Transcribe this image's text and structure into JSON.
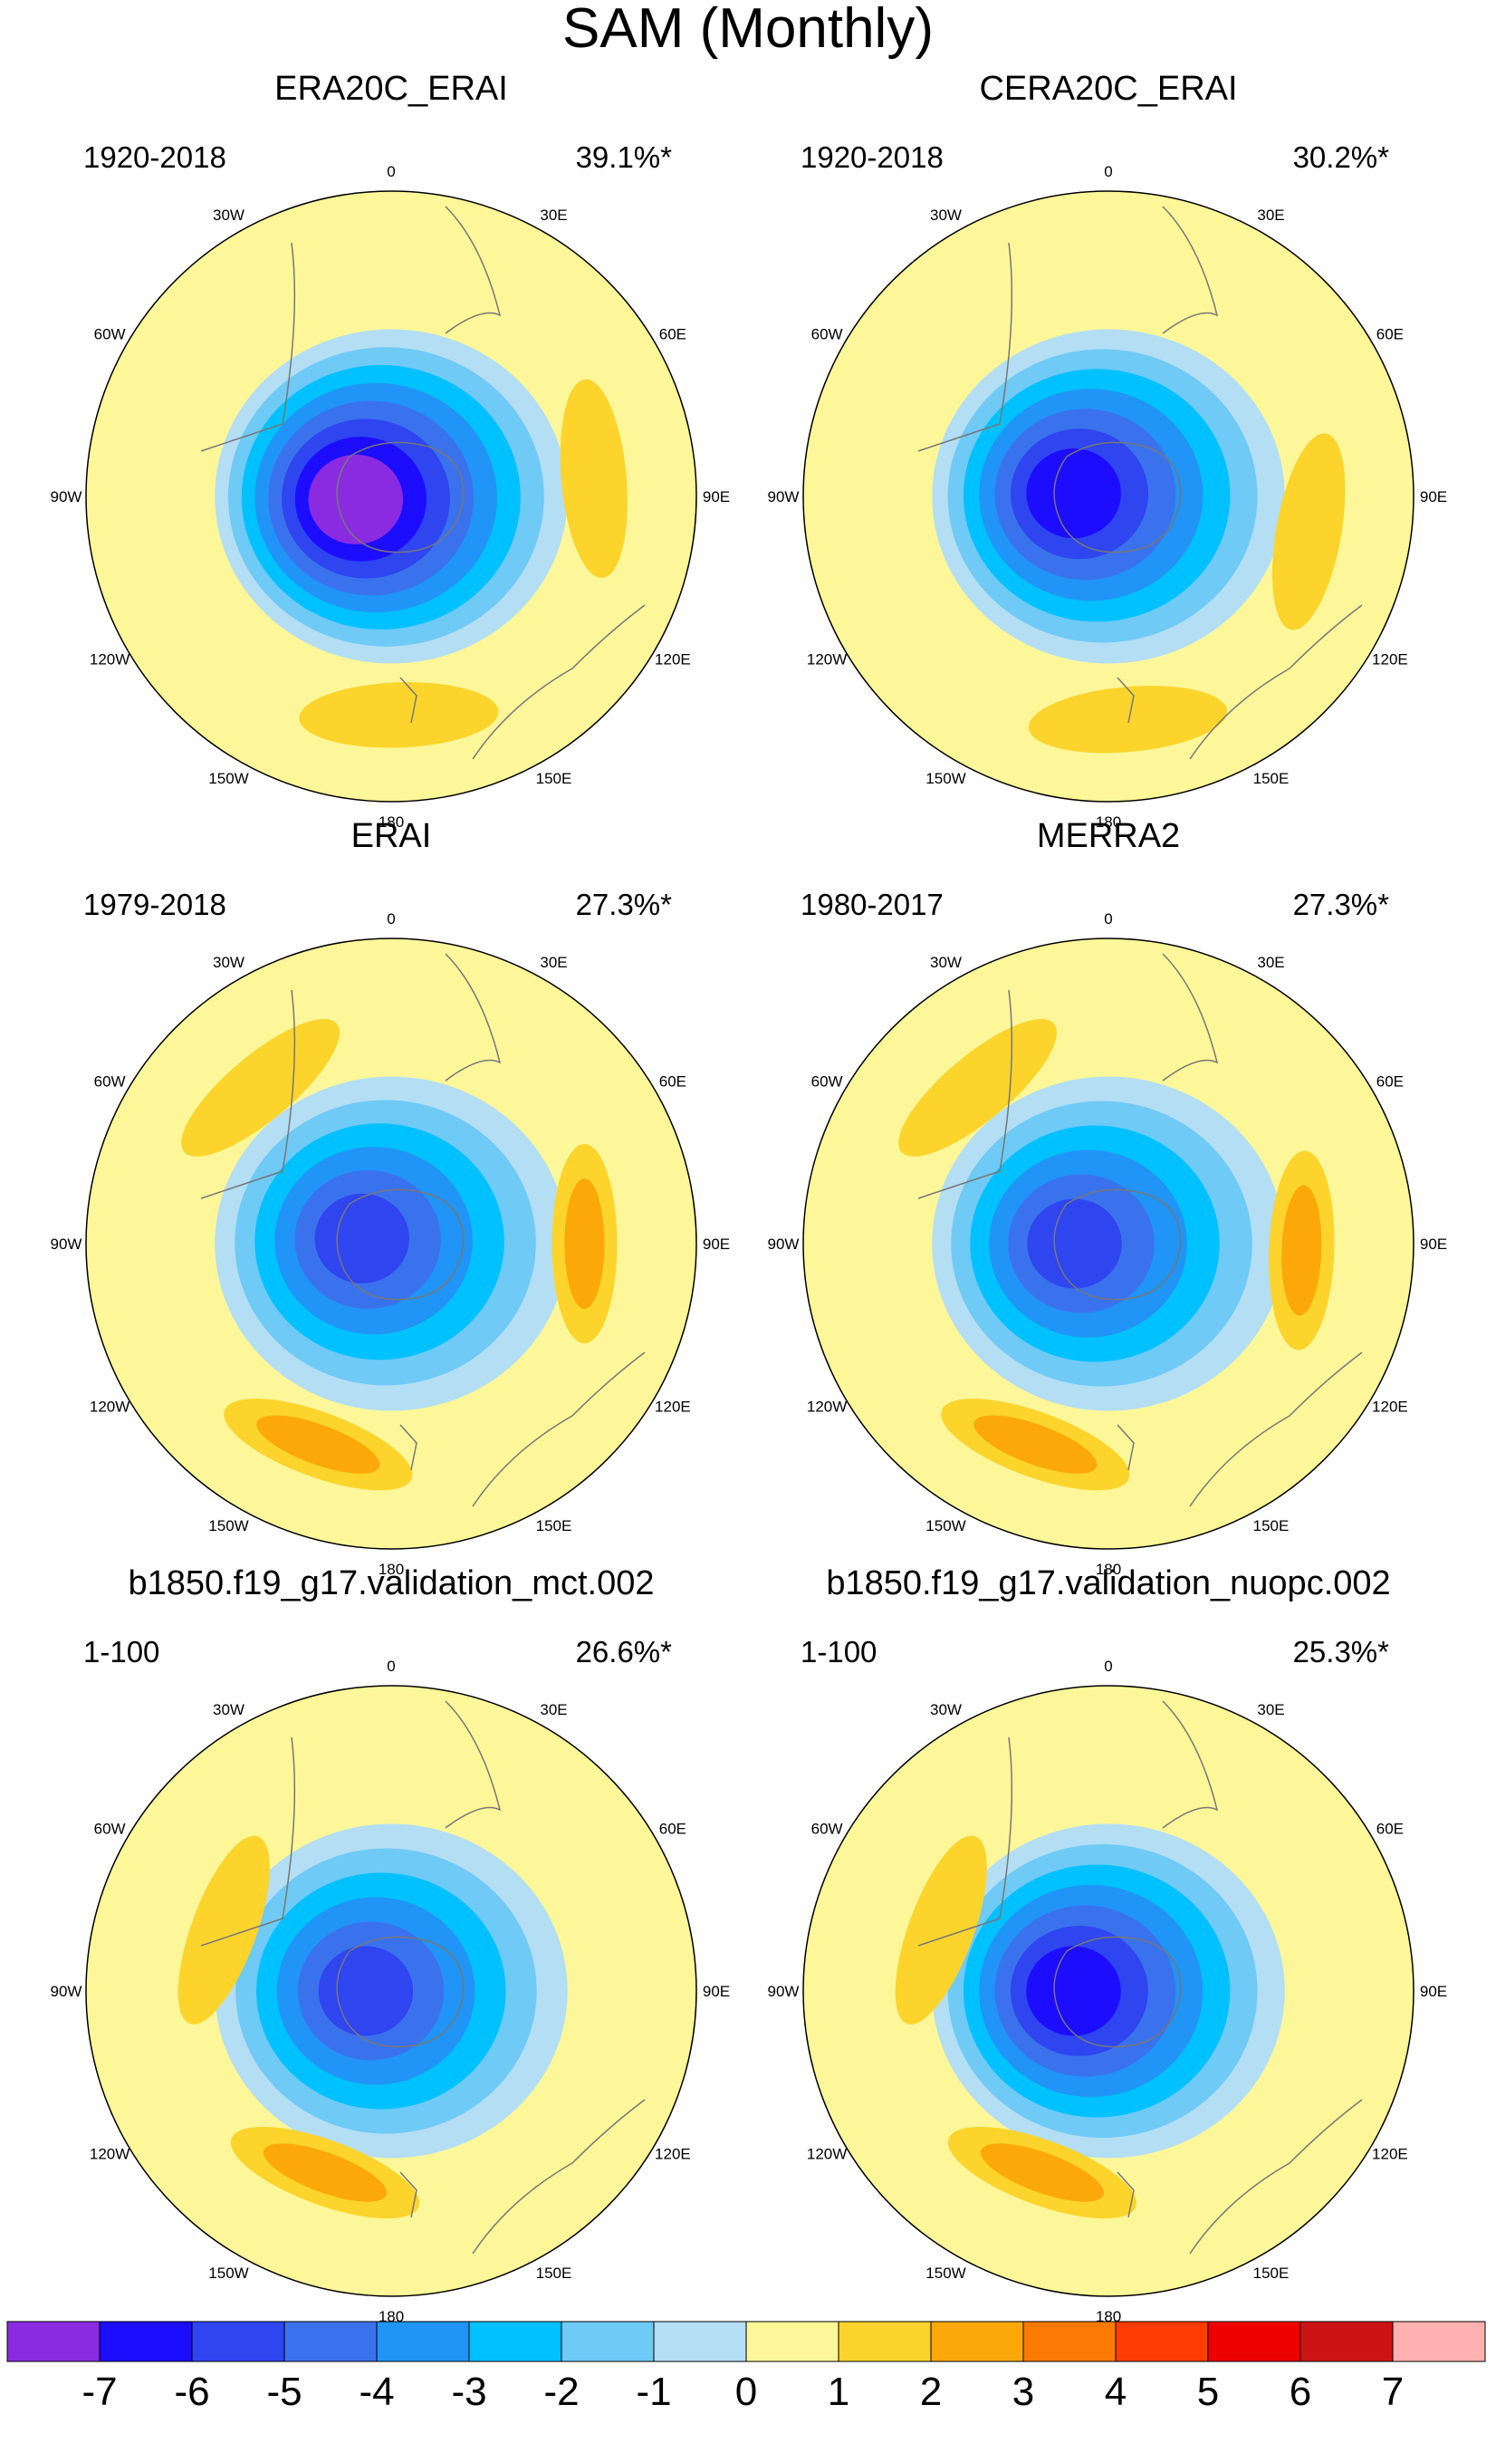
{
  "chart_data": {
    "type": "heatmap",
    "title": "SAM (Monthly)",
    "projection": "south-polar-stereographic",
    "longitude_labels": [
      "0",
      "30E",
      "60E",
      "90E",
      "120E",
      "150E",
      "180",
      "150W",
      "120W",
      "90W",
      "60W",
      "30W"
    ],
    "colorbar": {
      "levels": [
        "-7",
        "-6",
        "-5",
        "-4",
        "-3",
        "-2",
        "-1",
        "0",
        "1",
        "2",
        "3",
        "4",
        "5",
        "6",
        "7"
      ],
      "colors": [
        "#8a2be2",
        "#1c0dff",
        "#2e45f0",
        "#3a72ee",
        "#2094f7",
        "#00c1ff",
        "#6fcaf5",
        "#b3def4",
        "#fdf799",
        "#fcd42c",
        "#fca80a",
        "#fc7a04",
        "#fc3c00",
        "#ee0000",
        "#cc1414",
        "#ffb0b0"
      ]
    },
    "panels": [
      {
        "name": "ERA20C_ERAI",
        "period": "1920-2018",
        "variance": "39.1%*",
        "features": [
          {
            "kind": "low",
            "lon_deg": 265,
            "lat_deg": -82,
            "min_level": -7
          },
          {
            "kind": "high",
            "lon_deg": 85,
            "lat_deg": -50,
            "max_level": 1
          },
          {
            "kind": "high",
            "lon_deg": 178,
            "lat_deg": -47,
            "max_level": 1
          }
        ]
      },
      {
        "name": "CERA20C_ERAI",
        "period": "1920-2018",
        "variance": "30.2%*",
        "features": [
          {
            "kind": "low",
            "lon_deg": 275,
            "lat_deg": -82,
            "min_level": -6
          },
          {
            "kind": "high",
            "lon_deg": 100,
            "lat_deg": -50,
            "max_level": 1
          },
          {
            "kind": "high",
            "lon_deg": 175,
            "lat_deg": -46,
            "max_level": 1
          }
        ]
      },
      {
        "name": "ERAI",
        "period": "1979-2018",
        "variance": "27.3%*",
        "features": [
          {
            "kind": "low",
            "lon_deg": 280,
            "lat_deg": -83,
            "min_level": -5
          },
          {
            "kind": "high",
            "lon_deg": 90,
            "lat_deg": -52,
            "max_level": 2
          },
          {
            "kind": "high",
            "lon_deg": 200,
            "lat_deg": -48,
            "max_level": 2
          },
          {
            "kind": "high",
            "lon_deg": 320,
            "lat_deg": -50,
            "max_level": 1
          }
        ]
      },
      {
        "name": "MERRA2",
        "period": "1980-2017",
        "variance": "27.3%*",
        "features": [
          {
            "kind": "low",
            "lon_deg": 270,
            "lat_deg": -82,
            "min_level": -5
          },
          {
            "kind": "high",
            "lon_deg": 92,
            "lat_deg": -52,
            "max_level": 2
          },
          {
            "kind": "high",
            "lon_deg": 200,
            "lat_deg": -48,
            "max_level": 2
          },
          {
            "kind": "high",
            "lon_deg": 320,
            "lat_deg": -50,
            "max_level": 1
          }
        ]
      },
      {
        "name": "b1850.f19_g17.validation_mct.002",
        "period": "1-100",
        "variance": "26.6%*",
        "features": [
          {
            "kind": "low",
            "lon_deg": 270,
            "lat_deg": -84,
            "min_level": -5
          },
          {
            "kind": "high",
            "lon_deg": 200,
            "lat_deg": -52,
            "max_level": 2
          },
          {
            "kind": "high",
            "lon_deg": 290,
            "lat_deg": -55,
            "max_level": 1
          }
        ]
      },
      {
        "name": "b1850.f19_g17.validation_nuopc.002",
        "period": "1-100",
        "variance": "25.3%*",
        "features": [
          {
            "kind": "low",
            "lon_deg": 270,
            "lat_deg": -82,
            "min_level": -6
          },
          {
            "kind": "high",
            "lon_deg": 200,
            "lat_deg": -52,
            "max_level": 2
          },
          {
            "kind": "high",
            "lon_deg": 290,
            "lat_deg": -55,
            "max_level": 1
          }
        ]
      }
    ]
  }
}
